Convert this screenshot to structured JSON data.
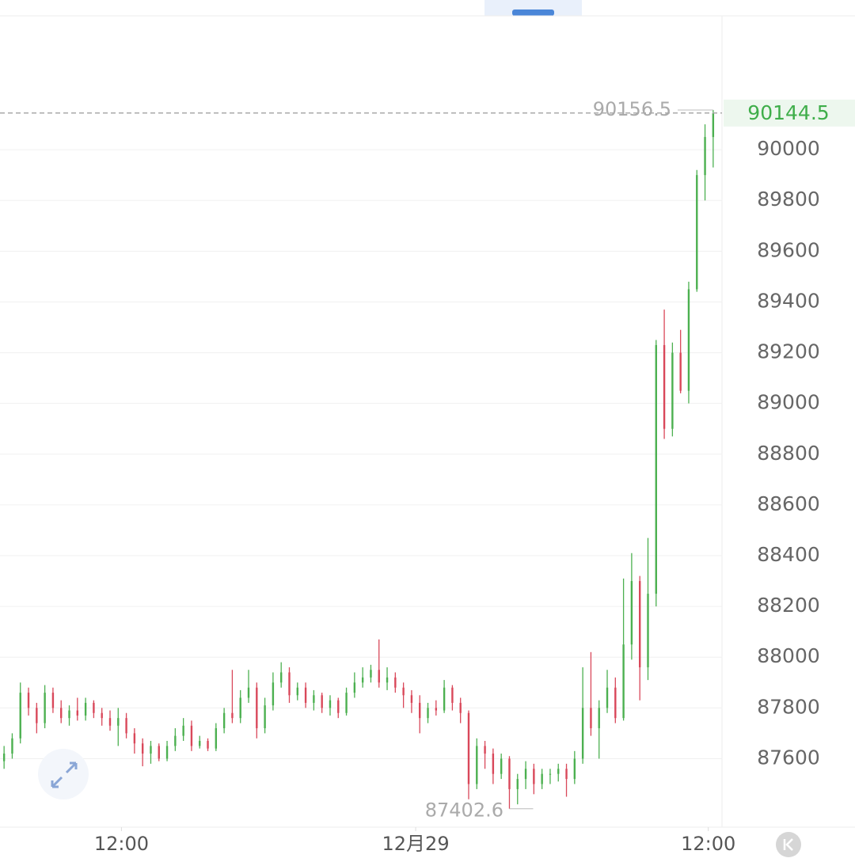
{
  "chart_data": {
    "type": "candlestick",
    "up_color": "#4cb050",
    "down_color": "#d9485a",
    "open": [
      87590,
      87620,
      87680,
      87860,
      87800,
      87740,
      87860,
      87800,
      87760,
      87790,
      87770,
      87820,
      87780,
      87760,
      87730,
      87760,
      87700,
      87660,
      87620,
      87650,
      87600,
      87650,
      87690,
      87730,
      87650,
      87670,
      87640,
      87720,
      87780,
      87760,
      87840,
      87880,
      87720,
      87810,
      87900,
      87940,
      87850,
      87880,
      87820,
      87850,
      87800,
      87830,
      87780,
      87860,
      87900,
      87920,
      87950,
      87900,
      87920,
      87880,
      87850,
      87820,
      87760,
      87800,
      87790,
      87880,
      87820,
      87780,
      87500,
      87650,
      87620,
      87540,
      87600,
      87480,
      87520,
      87560,
      87500,
      87540,
      87540,
      87560,
      87520,
      87600,
      87800,
      87720,
      87800,
      87880,
      87760,
      88050,
      88300,
      87960,
      88250,
      89230,
      88900,
      89200,
      89050,
      89450,
      89900,
      90050
    ],
    "high": [
      87650,
      87700,
      87900,
      87880,
      87820,
      87890,
      87880,
      87830,
      87810,
      87840,
      87840,
      87830,
      87800,
      87790,
      87800,
      87780,
      87720,
      87680,
      87670,
      87660,
      87670,
      87720,
      87760,
      87750,
      87690,
      87680,
      87740,
      87800,
      87950,
      87870,
      87950,
      87900,
      87840,
      87940,
      87980,
      87960,
      87900,
      87900,
      87870,
      87860,
      87850,
      87840,
      87880,
      87940,
      87960,
      87970,
      88070,
      87960,
      87940,
      87900,
      87870,
      87850,
      87820,
      87830,
      87910,
      87890,
      87840,
      87790,
      87680,
      87670,
      87640,
      87620,
      87610,
      87540,
      87590,
      87580,
      87560,
      87560,
      87580,
      87580,
      87630,
      87960,
      88020,
      87830,
      87950,
      87920,
      88310,
      88410,
      88320,
      88470,
      89250,
      89370,
      89240,
      89290,
      89480,
      89920,
      90100,
      90156.5
    ],
    "low": [
      87560,
      87600,
      87660,
      87770,
      87700,
      87720,
      87780,
      87740,
      87730,
      87750,
      87750,
      87760,
      87730,
      87710,
      87650,
      87680,
      87620,
      87570,
      87580,
      87590,
      87590,
      87630,
      87670,
      87630,
      87640,
      87630,
      87630,
      87700,
      87740,
      87740,
      87820,
      87680,
      87700,
      87790,
      87880,
      87820,
      87830,
      87800,
      87790,
      87780,
      87770,
      87760,
      87770,
      87840,
      87880,
      87900,
      87880,
      87870,
      87860,
      87800,
      87780,
      87700,
      87740,
      87770,
      87780,
      87790,
      87740,
      87440,
      87480,
      87560,
      87500,
      87520,
      87402.6,
      87420,
      87480,
      87460,
      87480,
      87500,
      87510,
      87450,
      87500,
      87580,
      87690,
      87600,
      87780,
      87740,
      87750,
      87990,
      87830,
      87910,
      88200,
      88860,
      88870,
      89040,
      89000,
      89440,
      89800,
      89930
    ],
    "close": [
      87620,
      87680,
      87860,
      87800,
      87740,
      87860,
      87800,
      87760,
      87790,
      87770,
      87820,
      87780,
      87760,
      87730,
      87760,
      87700,
      87660,
      87620,
      87650,
      87600,
      87650,
      87690,
      87730,
      87650,
      87670,
      87640,
      87720,
      87780,
      87760,
      87840,
      87880,
      87720,
      87810,
      87900,
      87940,
      87850,
      87880,
      87820,
      87850,
      87800,
      87830,
      87780,
      87860,
      87900,
      87920,
      87950,
      87900,
      87920,
      87880,
      87850,
      87820,
      87760,
      87800,
      87790,
      87880,
      87820,
      87780,
      87500,
      87650,
      87620,
      87540,
      87600,
      87480,
      87520,
      87560,
      87500,
      87540,
      87540,
      87560,
      87520,
      87600,
      87800,
      87720,
      87800,
      87880,
      87760,
      88050,
      88300,
      87960,
      88250,
      89230,
      88900,
      89200,
      89050,
      89450,
      89900,
      90050,
      90144.5
    ],
    "xlim": [
      -0.5,
      87.5
    ],
    "xticks": [
      {
        "value": 14.4,
        "label": "12:00"
      },
      {
        "value": 50.5,
        "label": "12月29"
      },
      {
        "value": 86.4,
        "label": "12:00"
      }
    ],
    "ylim": [
      87330,
      90590
    ],
    "yticks": [
      87600,
      87800,
      88000,
      88200,
      88400,
      88600,
      88800,
      89000,
      89200,
      89400,
      89600,
      89800,
      90000
    ],
    "grid": true,
    "max_label": 90156.5,
    "min_label": 87402.6,
    "last_price": 90144.5
  }
}
